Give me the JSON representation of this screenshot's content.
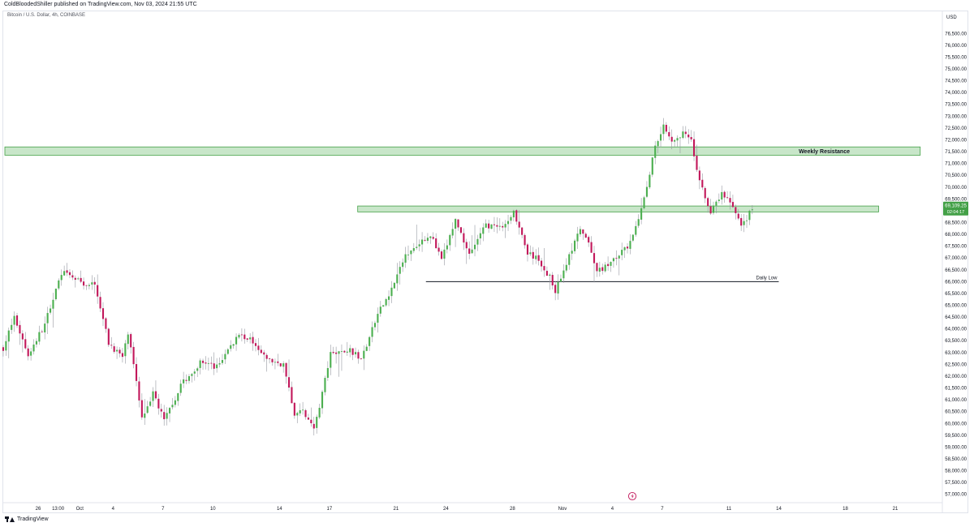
{
  "header": {
    "publisher": "ColdBloodedShiller published on TradingView.com, Nov 03, 2024 21:55 UTC",
    "symbol": "Bitcoin / U.S. Dollar, 4h, COINBASE"
  },
  "footer": {
    "brand": "TradingView"
  },
  "colors": {
    "up": "#4caf50",
    "down": "#c2185b",
    "zone_fill": "#c8e6c9",
    "zone_border": "#43a047",
    "line": "#131722",
    "price_tag": "#43a047"
  },
  "chart_data": {
    "type": "candlestick",
    "currency": "USD",
    "ylim": [
      56500,
      77000
    ],
    "y_ticks": [
      57000,
      57500,
      58000,
      58500,
      59000,
      59500,
      60000,
      60500,
      61000,
      61500,
      62000,
      62500,
      63000,
      63500,
      64000,
      64500,
      65000,
      65500,
      66000,
      66500,
      67000,
      67500,
      68000,
      68500,
      69000,
      69500,
      70000,
      70500,
      71000,
      71500,
      72000,
      72500,
      73000,
      73500,
      74000,
      74500,
      75000,
      75500,
      76000,
      76500
    ],
    "x_ticks": [
      {
        "label": "26",
        "day": 0
      },
      {
        "label": "13:00",
        "day": 1.2
      },
      {
        "label": "Oct",
        "day": 2.5
      },
      {
        "label": "4",
        "day": 4.5
      },
      {
        "label": "7",
        "day": 7.5
      },
      {
        "label": "10",
        "day": 10.5
      },
      {
        "label": "14",
        "day": 14.5
      },
      {
        "label": "17",
        "day": 17.5
      },
      {
        "label": "21",
        "day": 21.5
      },
      {
        "label": "24",
        "day": 24.5
      },
      {
        "label": "28",
        "day": 28.5
      },
      {
        "label": "Nov",
        "day": 31.5
      },
      {
        "label": "4",
        "day": 34.5
      },
      {
        "label": "7",
        "day": 37.5
      },
      {
        "label": "11",
        "day": 41.5
      },
      {
        "label": "14",
        "day": 44.5
      },
      {
        "label": "18",
        "day": 48.5
      },
      {
        "label": "21",
        "day": 51.5
      }
    ],
    "x_range": [
      -2,
      53
    ],
    "candle_start_day": -2.1,
    "candle_step_days": 0.1667,
    "path": [
      [
        63200,
        0
      ],
      [
        64500,
        4
      ],
      [
        62900,
        9
      ],
      [
        64200,
        15
      ],
      [
        66400,
        21
      ],
      [
        65800,
        31
      ],
      [
        66000,
        33
      ],
      [
        63400,
        38
      ],
      [
        62800,
        43
      ],
      [
        63800,
        45
      ],
      [
        60300,
        50
      ],
      [
        61300,
        54
      ],
      [
        60100,
        58
      ],
      [
        61600,
        64
      ],
      [
        62600,
        71
      ],
      [
        62400,
        77
      ],
      [
        63800,
        85
      ],
      [
        63400,
        91
      ],
      [
        62700,
        95
      ],
      [
        62500,
        101
      ],
      [
        60300,
        105
      ],
      [
        60600,
        108
      ],
      [
        59700,
        112
      ],
      [
        62900,
        118
      ],
      [
        63100,
        125
      ],
      [
        62700,
        129
      ],
      [
        64600,
        135
      ],
      [
        65700,
        140
      ],
      [
        67100,
        145
      ],
      [
        67700,
        150
      ],
      [
        68000,
        154
      ],
      [
        66900,
        158
      ],
      [
        68600,
        163
      ],
      [
        67200,
        168
      ],
      [
        68400,
        174
      ],
      [
        68200,
        180
      ],
      [
        69000,
        184
      ],
      [
        67200,
        189
      ],
      [
        66900,
        193
      ],
      [
        66200,
        197
      ],
      [
        65600,
        199
      ],
      [
        66800,
        203
      ],
      [
        68200,
        208
      ],
      [
        67300,
        212
      ],
      [
        66400,
        214
      ],
      [
        66800,
        219
      ],
      [
        67600,
        226
      ],
      [
        68600,
        229
      ],
      [
        70000,
        232
      ],
      [
        71800,
        235
      ],
      [
        72600,
        238
      ],
      [
        72000,
        241
      ],
      [
        72300,
        245
      ],
      [
        71900,
        248
      ],
      [
        70800,
        250
      ],
      [
        69900,
        252
      ],
      [
        68900,
        255
      ],
      [
        69700,
        259
      ],
      [
        69400,
        262
      ],
      [
        68300,
        266
      ],
      [
        68700,
        268
      ],
      [
        69100,
        270
      ]
    ],
    "annotations": [
      {
        "type": "zone",
        "label": "Weekly Resistance",
        "low": 71350,
        "high": 71700,
        "from_day": -2,
        "to_day": 53
      },
      {
        "type": "zone",
        "label": "",
        "low": 68950,
        "high": 69200,
        "from_day": 19.2,
        "to_day": 50.5
      },
      {
        "type": "hline",
        "label": "Daily Low",
        "price": 66000,
        "from_day": 23.3,
        "to_day": 44.5
      }
    ],
    "last_price": "69,109.25",
    "countdown": "02:04:17"
  }
}
